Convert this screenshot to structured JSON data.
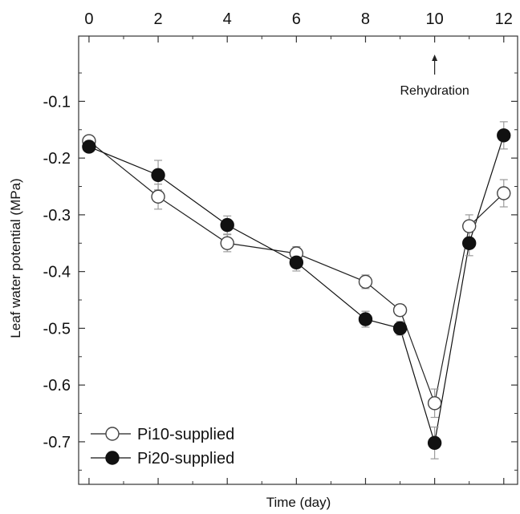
{
  "chart_data": {
    "type": "line",
    "title": "",
    "xlabel": "Time (day)",
    "ylabel": "Leaf water potential (MPa)",
    "xlim": [
      -0.3,
      12.4
    ],
    "ylim": [
      -0.775,
      0.015
    ],
    "x_axis_position": "top",
    "xticks": [
      0,
      2,
      4,
      6,
      8,
      10,
      12
    ],
    "xtick_labels": [
      "0",
      "2",
      "4",
      "6",
      "8",
      "10",
      "12"
    ],
    "yticks": [
      -0.1,
      -0.2,
      -0.3,
      -0.4,
      -0.5,
      -0.6,
      -0.7
    ],
    "ytick_labels": [
      "-0.1",
      "-0.2",
      "-0.3",
      "-0.4",
      "-0.5",
      "-0.6",
      "-0.7"
    ],
    "grid": false,
    "legend_position": "bottom-left",
    "annotation": {
      "text": "Rehydration",
      "x": 10
    },
    "series": [
      {
        "name": "Pi10-supplied",
        "marker": "open-circle",
        "color": "#222222",
        "x": [
          0,
          2,
          4,
          6,
          8,
          9,
          10,
          11,
          12
        ],
        "values": [
          -0.17,
          -0.268,
          -0.35,
          -0.368,
          -0.418,
          -0.468,
          -0.632,
          -0.32,
          -0.262
        ],
        "errors": [
          0.008,
          0.022,
          0.015,
          0.012,
          0.012,
          0.01,
          0.025,
          0.02,
          0.024
        ]
      },
      {
        "name": "Pi20-supplied",
        "marker": "filled-circle",
        "color": "#111111",
        "x": [
          0,
          2,
          4,
          6,
          8,
          9,
          10,
          11,
          12
        ],
        "values": [
          -0.18,
          -0.23,
          -0.318,
          -0.384,
          -0.484,
          -0.5,
          -0.702,
          -0.35,
          -0.16
        ],
        "errors": [
          0.008,
          0.026,
          0.016,
          0.015,
          0.014,
          0.012,
          0.028,
          0.022,
          0.024
        ]
      }
    ]
  }
}
